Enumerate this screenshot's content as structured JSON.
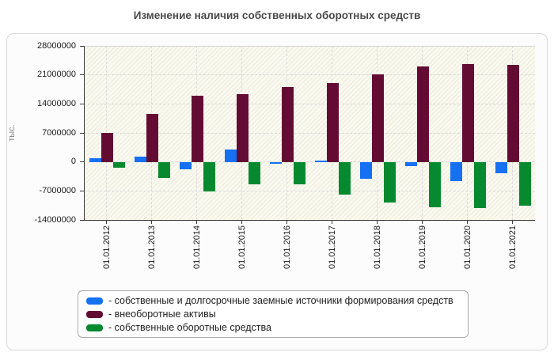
{
  "page": {
    "title": "Изменение наличия собственных оборотных средств"
  },
  "chart_data": {
    "type": "bar",
    "title": "Изменение наличия собственных оборотных средств",
    "xlabel": "",
    "ylabel": "тыс.",
    "ylim": [
      -14000000,
      28000000
    ],
    "yticks": [
      28000000,
      21000000,
      14000000,
      7000000,
      0,
      -7000000,
      -14000000
    ],
    "grid": "both-dashed",
    "legend_position": "bottom-box",
    "categories": [
      "01.01.2012",
      "01.01.2013",
      "01.01.2014",
      "01.01.2015",
      "01.01.2016",
      "01.01.2017",
      "01.01.2018",
      "01.01.2019",
      "01.01.2020",
      "01.01.2021"
    ],
    "series": [
      {
        "name": "собственные и долгосрочные заемные источники формирования средств",
        "legend_label": "- собственные и долгосрочные заемные источники формирования средств",
        "color": "#1570f2",
        "values": [
          900000,
          1200000,
          -1700000,
          3000000,
          -500000,
          300000,
          -4000000,
          -1100000,
          -4600000,
          -2700000
        ]
      },
      {
        "name": "внеоборотные активы",
        "legend_label": "- внеоборотные активы",
        "color": "#640b33",
        "values": [
          7000000,
          11500000,
          15900000,
          16300000,
          18100000,
          19100000,
          21200000,
          23100000,
          23600000,
          23400000
        ]
      },
      {
        "name": "собственные оборотные средства",
        "legend_label": "- собственные оборотные средства",
        "color": "#078a2f",
        "values": [
          -1400000,
          -3800000,
          -7200000,
          -5500000,
          -5400000,
          -7900000,
          -9800000,
          -10900000,
          -11100000,
          -10500000
        ]
      }
    ]
  }
}
